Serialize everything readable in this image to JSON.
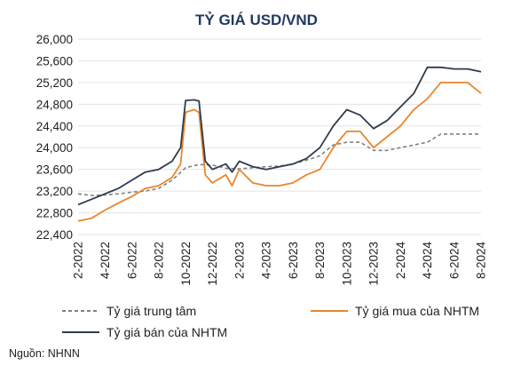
{
  "chart_data": {
    "type": "line",
    "title": "TỶ GIÁ USD/VND",
    "source": "Nguồn: NHNN",
    "ylim": [
      22400,
      26000
    ],
    "yticks": [
      22400,
      22800,
      23200,
      23600,
      24000,
      24400,
      24800,
      25200,
      25600,
      26000
    ],
    "ytick_labels": [
      "22,400",
      "22,800",
      "23,200",
      "23,600",
      "24,000",
      "24,400",
      "24,800",
      "25,200",
      "25,600",
      "26,000"
    ],
    "xlim": [
      "2022-02",
      "2024-08"
    ],
    "xticks": [
      "2022-02",
      "2022-04",
      "2022-06",
      "2022-08",
      "2022-10",
      "2022-12",
      "2023-02",
      "2023-04",
      "2023-06",
      "2023-08",
      "2023-10",
      "2023-12",
      "2024-02",
      "2024-04",
      "2024-06",
      "2024-08"
    ],
    "xtick_labels": [
      "2-2022",
      "4-2022",
      "6-2022",
      "8-2022",
      "10-2022",
      "12-2022",
      "2-2023",
      "4-2023",
      "6-2023",
      "8-2023",
      "10-2023",
      "12-2023",
      "2-2024",
      "4-2024",
      "6-2024",
      "8-2024"
    ],
    "grid": true,
    "legend_position": "bottom",
    "series": [
      {
        "name": "Tỷ giá trung tâm",
        "color": "#808080",
        "style": "dashed",
        "points": [
          [
            "2022-02",
            23150
          ],
          [
            "2022-03",
            23120
          ],
          [
            "2022-04",
            23130
          ],
          [
            "2022-05",
            23150
          ],
          [
            "2022-06",
            23180
          ],
          [
            "2022-07",
            23200
          ],
          [
            "2022-08",
            23250
          ],
          [
            "2022-09",
            23400
          ],
          [
            "2022-10",
            23630
          ],
          [
            "2022-11",
            23690
          ],
          [
            "2022-12",
            23680
          ],
          [
            "2023-01",
            23620
          ],
          [
            "2023-02",
            23610
          ],
          [
            "2023-03",
            23630
          ],
          [
            "2023-04",
            23650
          ],
          [
            "2023-05",
            23660
          ],
          [
            "2023-06",
            23700
          ],
          [
            "2023-07",
            23770
          ],
          [
            "2023-08",
            23850
          ],
          [
            "2023-09",
            24050
          ],
          [
            "2023-10",
            24100
          ],
          [
            "2023-11",
            24100
          ],
          [
            "2023-12",
            23950
          ],
          [
            "2024-01",
            23950
          ],
          [
            "2024-02",
            24000
          ],
          [
            "2024-03",
            24050
          ],
          [
            "2024-04",
            24100
          ],
          [
            "2024-05",
            24250
          ],
          [
            "2024-06",
            24250
          ],
          [
            "2024-07",
            24250
          ],
          [
            "2024-08",
            24250
          ]
        ]
      },
      {
        "name": "Tỷ giá mua của NHTM",
        "color": "#e8862f",
        "style": "solid",
        "points": [
          [
            "2022-02",
            22650
          ],
          [
            "2022-03",
            22700
          ],
          [
            "2022-04",
            22850
          ],
          [
            "2022-05",
            22980
          ],
          [
            "2022-06",
            23100
          ],
          [
            "2022-07",
            23250
          ],
          [
            "2022-08",
            23300
          ],
          [
            "2022-09",
            23450
          ],
          [
            "2022-09-20",
            23700
          ],
          [
            "2022-10",
            24650
          ],
          [
            "2022-10-20",
            24700
          ],
          [
            "2022-11",
            24650
          ],
          [
            "2022-11-15",
            23500
          ],
          [
            "2022-12",
            23350
          ],
          [
            "2023-01",
            23500
          ],
          [
            "2023-01-15",
            23300
          ],
          [
            "2023-02",
            23600
          ],
          [
            "2023-03",
            23350
          ],
          [
            "2023-04",
            23300
          ],
          [
            "2023-05",
            23300
          ],
          [
            "2023-06",
            23350
          ],
          [
            "2023-07",
            23500
          ],
          [
            "2023-08",
            23600
          ],
          [
            "2023-09",
            24000
          ],
          [
            "2023-10",
            24300
          ],
          [
            "2023-11",
            24300
          ],
          [
            "2023-12",
            24000
          ],
          [
            "2024-01",
            24200
          ],
          [
            "2024-02",
            24400
          ],
          [
            "2024-03",
            24700
          ],
          [
            "2024-04",
            24900
          ],
          [
            "2024-05",
            25200
          ],
          [
            "2024-06",
            25200
          ],
          [
            "2024-07",
            25200
          ],
          [
            "2024-08",
            25000
          ]
        ]
      },
      {
        "name": "Tỷ giá bán của NHTM",
        "color": "#2f3b4c",
        "style": "solid",
        "points": [
          [
            "2022-02",
            22950
          ],
          [
            "2022-03",
            23050
          ],
          [
            "2022-04",
            23150
          ],
          [
            "2022-05",
            23250
          ],
          [
            "2022-06",
            23400
          ],
          [
            "2022-07",
            23550
          ],
          [
            "2022-08",
            23600
          ],
          [
            "2022-09",
            23750
          ],
          [
            "2022-09-20",
            24000
          ],
          [
            "2022-10",
            24870
          ],
          [
            "2022-10-20",
            24880
          ],
          [
            "2022-11",
            24860
          ],
          [
            "2022-11-15",
            23750
          ],
          [
            "2022-12",
            23600
          ],
          [
            "2023-01",
            23700
          ],
          [
            "2023-01-15",
            23550
          ],
          [
            "2023-02",
            23750
          ],
          [
            "2023-03",
            23650
          ],
          [
            "2023-04",
            23600
          ],
          [
            "2023-05",
            23650
          ],
          [
            "2023-06",
            23700
          ],
          [
            "2023-07",
            23800
          ],
          [
            "2023-08",
            24000
          ],
          [
            "2023-09",
            24400
          ],
          [
            "2023-10",
            24700
          ],
          [
            "2023-11",
            24600
          ],
          [
            "2023-12",
            24350
          ],
          [
            "2024-01",
            24500
          ],
          [
            "2024-02",
            24750
          ],
          [
            "2024-03",
            25000
          ],
          [
            "2024-04",
            25480
          ],
          [
            "2024-05",
            25480
          ],
          [
            "2024-06",
            25450
          ],
          [
            "2024-07",
            25450
          ],
          [
            "2024-08",
            25400
          ]
        ]
      }
    ]
  }
}
